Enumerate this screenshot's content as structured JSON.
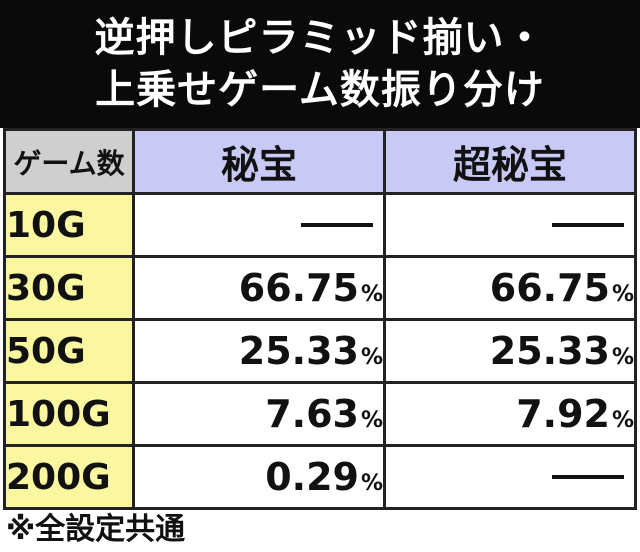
{
  "title": {
    "line1": "逆押しピラミッド揃い・",
    "line2": "上乗せゲーム数振り分け"
  },
  "table": {
    "corner_label": "ゲーム数",
    "columns": [
      "秘宝",
      "超秘宝"
    ],
    "rows": [
      {
        "label": "10G",
        "hihou": "—",
        "chou_hihou": "—"
      },
      {
        "label": "30G",
        "hihou": "66.75",
        "chou_hihou": "66.75"
      },
      {
        "label": "50G",
        "hihou": "25.33",
        "chou_hihou": "25.33"
      },
      {
        "label": "100G",
        "hihou": "7.63",
        "chou_hihou": "7.92"
      },
      {
        "label": "200G",
        "hihou": "0.29",
        "chou_hihou": "—"
      }
    ],
    "unit": "%"
  },
  "footnote": "※全設定共通",
  "colors": {
    "header_bg": "#0a0a0a",
    "corner_bg": "#cfcfcf",
    "column_header_bg": "#c9c9f6",
    "row_header_bg": "#fbf7a0"
  }
}
